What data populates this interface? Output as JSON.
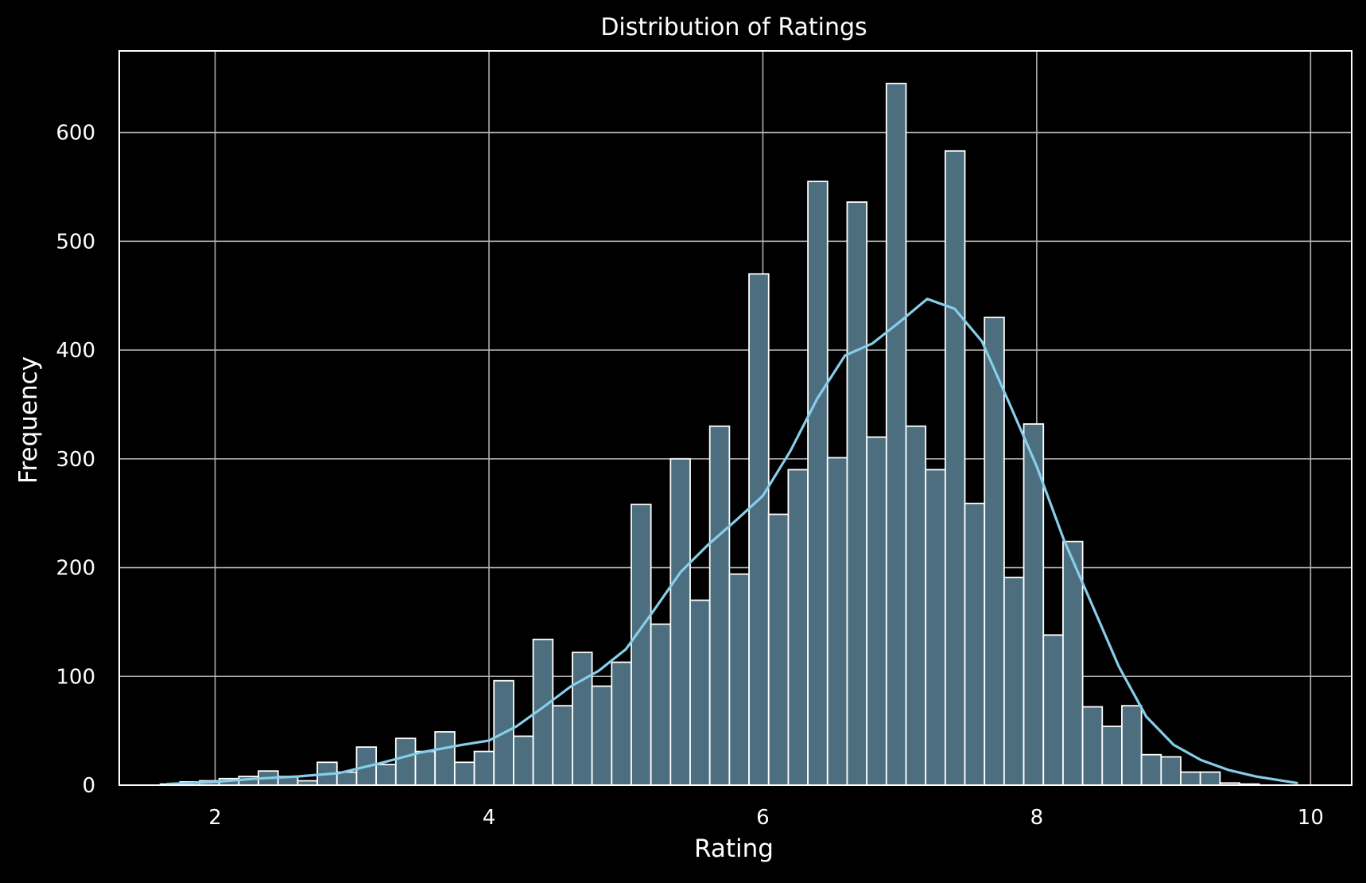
{
  "chart_data": {
    "type": "histogram",
    "title": "Distribution of Ratings",
    "xlabel": "Rating",
    "ylabel": "Frequency",
    "xlim": [
      1.3,
      10.3
    ],
    "ylim": [
      0,
      675
    ],
    "xticks": [
      2,
      4,
      6,
      8,
      10
    ],
    "yticks": [
      0,
      100,
      200,
      300,
      400,
      500,
      600
    ],
    "grid": true,
    "bin_start": 1.6,
    "bin_width": 0.1433,
    "counts": [
      1,
      3,
      4,
      6,
      8,
      13,
      8,
      4,
      21,
      12,
      35,
      19,
      43,
      31,
      49,
      21,
      31,
      96,
      45,
      134,
      73,
      122,
      91,
      113,
      258,
      148,
      300,
      170,
      330,
      194,
      470,
      249,
      290,
      555,
      301,
      536,
      320,
      645,
      330,
      290,
      583,
      259,
      430,
      191,
      332,
      138,
      224,
      72,
      54,
      73,
      28,
      26,
      12,
      12,
      2,
      1
    ],
    "kde": {
      "x": [
        1.65,
        2.0,
        2.3,
        2.6,
        2.9,
        3.2,
        3.5,
        3.8,
        4.0,
        4.2,
        4.4,
        4.6,
        4.8,
        5.0,
        5.2,
        5.4,
        5.6,
        5.8,
        6.0,
        6.2,
        6.4,
        6.6,
        6.8,
        7.0,
        7.2,
        7.4,
        7.6,
        7.8,
        8.0,
        8.2,
        8.4,
        8.6,
        8.8,
        9.0,
        9.2,
        9.4,
        9.6,
        9.9
      ],
      "y": [
        1,
        3,
        6,
        8,
        11,
        20,
        30,
        37,
        41,
        54,
        72,
        91,
        105,
        125,
        160,
        196,
        221,
        243,
        266,
        307,
        356,
        395,
        406,
        426,
        447,
        438,
        408,
        351,
        293,
        225,
        167,
        109,
        63,
        37,
        23,
        14,
        8,
        2
      ]
    },
    "bar_fill": "#4c6e7e",
    "bar_edge": "#ffffff",
    "kde_color": "#87ceeb",
    "background": "#000000",
    "grid_color": "#b0b0b0"
  }
}
